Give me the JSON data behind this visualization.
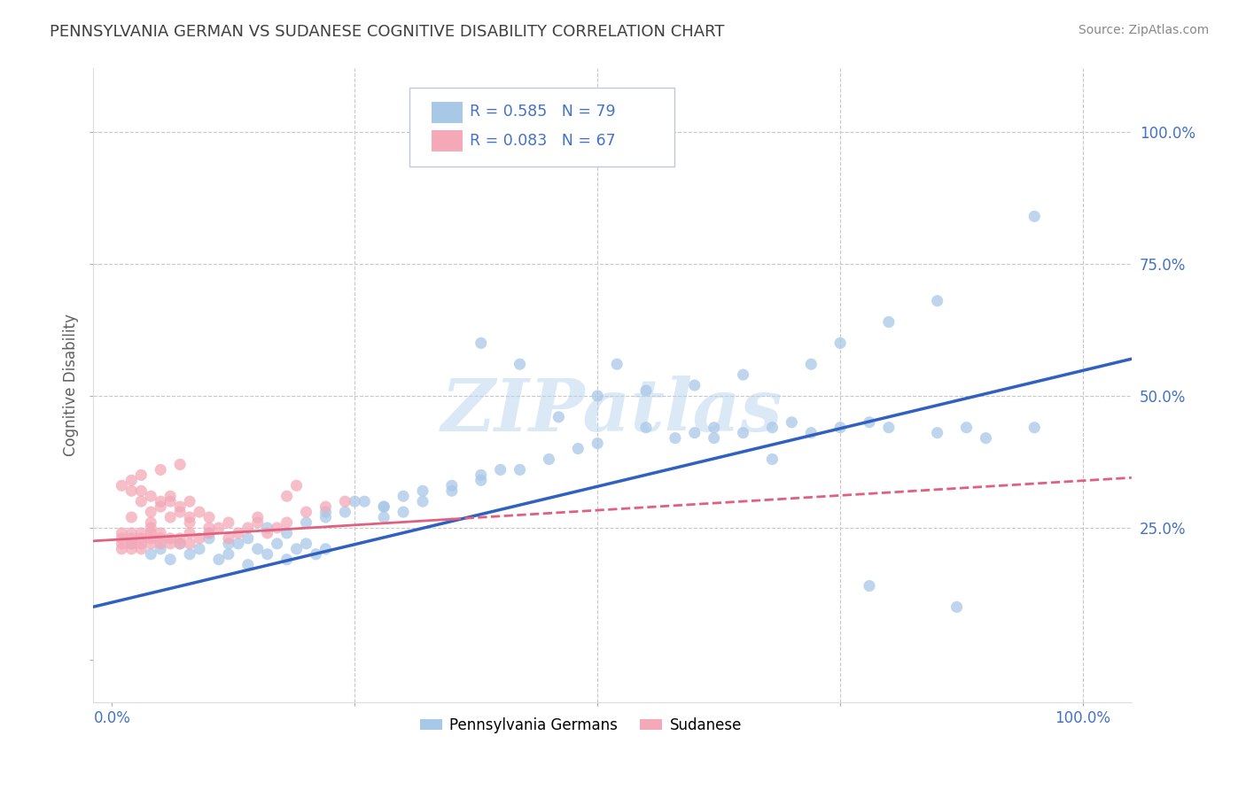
{
  "title": "PENNSYLVANIA GERMAN VS SUDANESE COGNITIVE DISABILITY CORRELATION CHART",
  "source": "Source: ZipAtlas.com",
  "ylabel": "Cognitive Disability",
  "legend_labels": [
    "Pennsylvania Germans",
    "Sudanese"
  ],
  "R_blue": 0.585,
  "N_blue": 79,
  "R_pink": 0.083,
  "N_pink": 67,
  "blue_color": "#a8c8e8",
  "pink_color": "#f4a8b8",
  "blue_line_color": "#3060c0",
  "pink_line_color": "#e06080",
  "watermark": "ZIPatlas",
  "xlim": [
    -0.02,
    1.05
  ],
  "ylim": [
    -0.08,
    1.12
  ],
  "background_color": "#ffffff",
  "grid_color": "#c8c8c8",
  "title_color": "#404040",
  "axis_label_color": "#606060",
  "tick_label_color": "#4472c4",
  "blue_x": [
    0.02,
    0.04,
    0.05,
    0.06,
    0.07,
    0.08,
    0.09,
    0.1,
    0.11,
    0.12,
    0.13,
    0.14,
    0.15,
    0.16,
    0.17,
    0.18,
    0.19,
    0.2,
    0.21,
    0.22,
    0.1,
    0.12,
    0.14,
    0.16,
    0.18,
    0.2,
    0.22,
    0.24,
    0.26,
    0.28,
    0.22,
    0.25,
    0.28,
    0.3,
    0.32,
    0.35,
    0.38,
    0.4,
    0.28,
    0.3,
    0.32,
    0.35,
    0.38,
    0.42,
    0.45,
    0.48,
    0.5,
    0.55,
    0.58,
    0.6,
    0.62,
    0.65,
    0.68,
    0.7,
    0.72,
    0.75,
    0.78,
    0.8,
    0.85,
    0.88,
    0.9,
    0.95,
    0.5,
    0.55,
    0.6,
    0.65,
    0.72,
    0.75,
    0.8,
    0.85,
    0.38,
    0.42,
    0.46,
    0.52,
    0.62,
    0.68,
    0.95,
    0.78,
    0.87
  ],
  "blue_y": [
    0.22,
    0.2,
    0.21,
    0.19,
    0.22,
    0.2,
    0.21,
    0.23,
    0.19,
    0.2,
    0.22,
    0.18,
    0.21,
    0.2,
    0.22,
    0.19,
    0.21,
    0.22,
    0.2,
    0.21,
    0.24,
    0.22,
    0.23,
    0.25,
    0.24,
    0.26,
    0.27,
    0.28,
    0.3,
    0.29,
    0.28,
    0.3,
    0.29,
    0.31,
    0.32,
    0.33,
    0.35,
    0.36,
    0.27,
    0.28,
    0.3,
    0.32,
    0.34,
    0.36,
    0.38,
    0.4,
    0.41,
    0.44,
    0.42,
    0.43,
    0.44,
    0.43,
    0.44,
    0.45,
    0.43,
    0.44,
    0.45,
    0.44,
    0.43,
    0.44,
    0.42,
    0.44,
    0.5,
    0.51,
    0.52,
    0.54,
    0.56,
    0.6,
    0.64,
    0.68,
    0.6,
    0.56,
    0.46,
    0.56,
    0.42,
    0.38,
    0.84,
    0.14,
    0.1
  ],
  "pink_x": [
    0.01,
    0.01,
    0.01,
    0.01,
    0.02,
    0.02,
    0.02,
    0.02,
    0.03,
    0.03,
    0.03,
    0.03,
    0.04,
    0.04,
    0.04,
    0.04,
    0.05,
    0.05,
    0.05,
    0.06,
    0.06,
    0.07,
    0.07,
    0.08,
    0.08,
    0.09,
    0.1,
    0.11,
    0.12,
    0.13,
    0.14,
    0.15,
    0.16,
    0.17,
    0.18,
    0.02,
    0.03,
    0.04,
    0.05,
    0.06,
    0.07,
    0.08,
    0.09,
    0.1,
    0.01,
    0.02,
    0.03,
    0.04,
    0.05,
    0.06,
    0.07,
    0.08,
    0.2,
    0.22,
    0.24,
    0.18,
    0.19,
    0.15,
    0.12,
    0.1,
    0.08,
    0.06,
    0.04,
    0.02,
    0.03,
    0.05,
    0.07
  ],
  "pink_y": [
    0.22,
    0.23,
    0.24,
    0.21,
    0.22,
    0.23,
    0.24,
    0.21,
    0.22,
    0.23,
    0.24,
    0.21,
    0.22,
    0.23,
    0.24,
    0.25,
    0.22,
    0.23,
    0.24,
    0.22,
    0.23,
    0.22,
    0.23,
    0.24,
    0.22,
    0.23,
    0.24,
    0.25,
    0.23,
    0.24,
    0.25,
    0.26,
    0.24,
    0.25,
    0.26,
    0.32,
    0.3,
    0.28,
    0.3,
    0.31,
    0.29,
    0.3,
    0.28,
    0.27,
    0.33,
    0.34,
    0.32,
    0.31,
    0.29,
    0.3,
    0.28,
    0.27,
    0.28,
    0.29,
    0.3,
    0.31,
    0.33,
    0.27,
    0.26,
    0.25,
    0.26,
    0.27,
    0.26,
    0.27,
    0.35,
    0.36,
    0.37
  ],
  "blue_line_x0": -0.02,
  "blue_line_x1": 1.05,
  "blue_line_y0": 0.1,
  "blue_line_y1": 0.57,
  "pink_line_x0": -0.02,
  "pink_line_x1": 1.05,
  "pink_line_y0": 0.225,
  "pink_line_y1": 0.345
}
